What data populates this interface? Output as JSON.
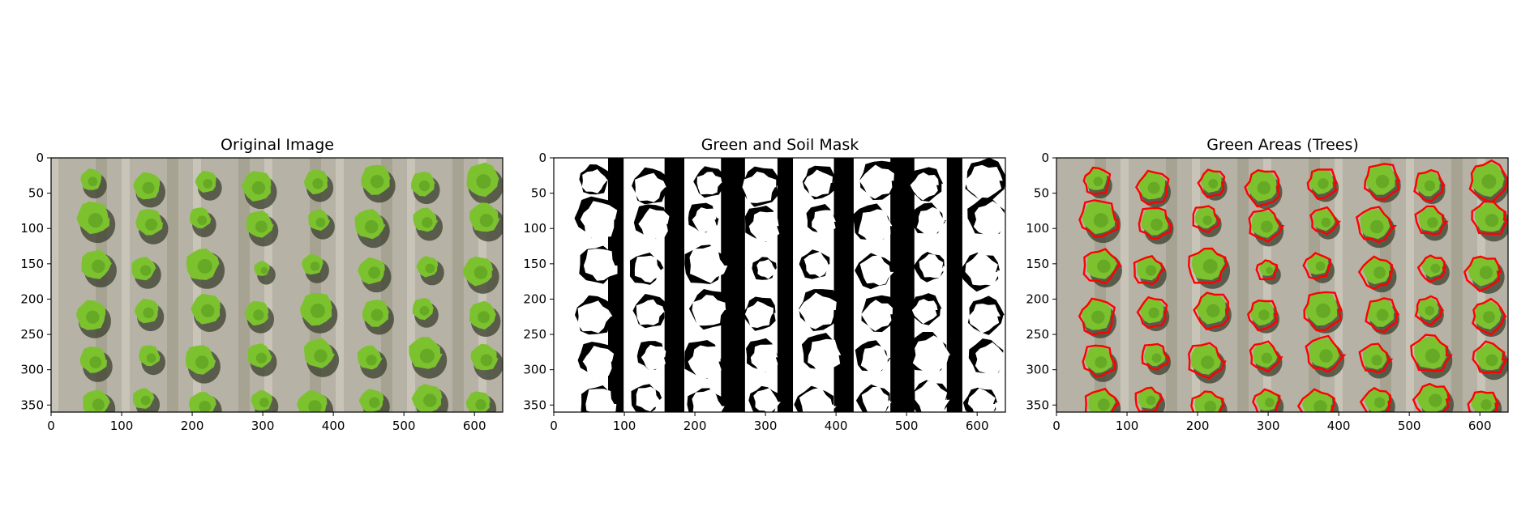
{
  "figure": {
    "panels": [
      {
        "title": "Original Image",
        "x_ticks": [
          "0",
          "100",
          "200",
          "300",
          "400",
          "500",
          "600"
        ],
        "y_ticks": [
          "0",
          "50",
          "100",
          "150",
          "200",
          "250",
          "300",
          "350"
        ]
      },
      {
        "title": "Green and Soil Mask",
        "x_ticks": [
          "0",
          "100",
          "200",
          "300",
          "400",
          "500",
          "600"
        ],
        "y_ticks": [
          "0",
          "50",
          "100",
          "150",
          "200",
          "250",
          "300",
          "350"
        ]
      },
      {
        "title": "Green Areas (Trees)",
        "x_ticks": [
          "0",
          "100",
          "200",
          "300",
          "400",
          "500",
          "600"
        ],
        "y_ticks": [
          "0",
          "50",
          "100",
          "150",
          "200",
          "250",
          "300",
          "350"
        ]
      }
    ]
  },
  "colors": {
    "soil": "#b7b2a6",
    "tree": "#7cc22e",
    "tree_dark": "#4f8f1c",
    "shadow": "#3a3f2c",
    "mask_white": "#ffffff",
    "mask_black": "#000000",
    "contour": "#ff0000"
  }
}
